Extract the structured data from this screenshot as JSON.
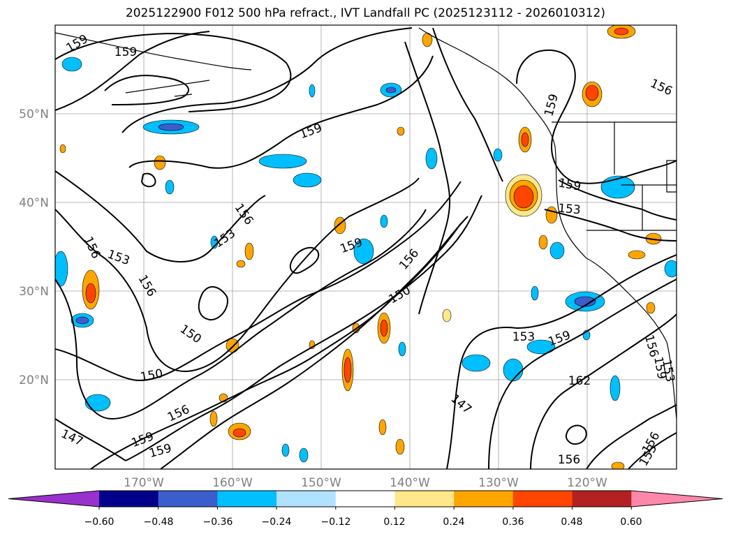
{
  "title": "2025122900 F012 500 hPa refract., IVT Landfall PC (2025123112 - 2026010312)",
  "map": {
    "lat_labels": [
      "50°N",
      "40°N",
      "30°N",
      "20°N"
    ],
    "lon_labels": [
      "170°W",
      "160°W",
      "150°W",
      "140°W",
      "130°W",
      "120°W"
    ],
    "contour_labels": [
      {
        "text": "159",
        "angle": -30
      },
      {
        "text": "159",
        "angle": 0
      },
      {
        "text": "159",
        "angle": -20
      },
      {
        "text": "156",
        "angle": 25
      },
      {
        "text": "159",
        "angle": -75
      },
      {
        "text": "156",
        "angle": 55
      },
      {
        "text": "153",
        "angle": -35
      },
      {
        "text": "153",
        "angle": 20
      },
      {
        "text": "156",
        "angle": 65
      },
      {
        "text": "156",
        "angle": 60
      },
      {
        "text": "159",
        "angle": -20
      },
      {
        "text": "156",
        "angle": -50
      },
      {
        "text": "150",
        "angle": -30
      },
      {
        "text": "150",
        "angle": 35
      },
      {
        "text": "150",
        "angle": -10
      },
      {
        "text": "156",
        "angle": -25
      },
      {
        "text": "159",
        "angle": -20
      },
      {
        "text": "159",
        "angle": -15
      },
      {
        "text": "147",
        "angle": 25
      },
      {
        "text": "159",
        "angle": 10
      },
      {
        "text": "153",
        "angle": 5
      },
      {
        "text": "153",
        "angle": 0
      },
      {
        "text": "159",
        "angle": -20
      },
      {
        "text": "162",
        "angle": 0
      },
      {
        "text": "147",
        "angle": 40
      },
      {
        "text": "156",
        "angle": 75
      },
      {
        "text": "159",
        "angle": 80
      },
      {
        "text": "153",
        "angle": 80
      },
      {
        "text": "156",
        "angle": 0
      },
      {
        "text": "156",
        "angle": -60
      },
      {
        "text": "153",
        "angle": -60
      }
    ]
  },
  "colorbar": {
    "tick_labels": [
      "−0.60",
      "−0.48",
      "−0.36",
      "−0.24",
      "−0.12",
      "0.12",
      "0.24",
      "0.36",
      "0.48",
      "0.60"
    ],
    "colors": [
      "#9932cc",
      "#00008b",
      "#3a5fcd",
      "#00bfff",
      "#b0e2ff",
      "#ffffff",
      "#ffe78a",
      "#ffa500",
      "#ff4500",
      "#b22222",
      "#ff88aa"
    ]
  }
}
